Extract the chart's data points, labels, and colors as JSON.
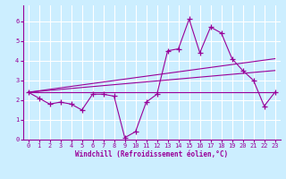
{
  "xlabel": "Windchill (Refroidissement éolien,°C)",
  "ylabel": "",
  "background_color": "#cceeff",
  "grid_color": "#ffffff",
  "line_color": "#990099",
  "xlim": [
    -0.5,
    23.5
  ],
  "ylim": [
    0,
    6.8
  ],
  "xticks": [
    0,
    1,
    2,
    3,
    4,
    5,
    6,
    7,
    8,
    9,
    10,
    11,
    12,
    13,
    14,
    15,
    16,
    17,
    18,
    19,
    20,
    21,
    22,
    23
  ],
  "yticks": [
    0,
    1,
    2,
    3,
    4,
    5,
    6
  ],
  "scatter_x": [
    0,
    1,
    2,
    3,
    4,
    5,
    6,
    7,
    8,
    9,
    10,
    11,
    12,
    13,
    14,
    15,
    16,
    17,
    18,
    19,
    20,
    21,
    22,
    23
  ],
  "scatter_y": [
    2.4,
    2.1,
    1.8,
    1.9,
    1.8,
    1.5,
    2.3,
    2.3,
    2.2,
    0.1,
    0.4,
    1.9,
    2.3,
    4.5,
    4.6,
    6.1,
    4.4,
    5.7,
    5.4,
    4.1,
    3.5,
    3.0,
    1.7,
    2.4
  ],
  "line1_x": [
    0,
    23
  ],
  "line1_y": [
    2.4,
    2.4
  ],
  "line2_x": [
    0,
    23
  ],
  "line2_y": [
    2.4,
    3.5
  ],
  "line3_x": [
    0,
    23
  ],
  "line3_y": [
    2.4,
    4.1
  ],
  "font_color": "#990099",
  "tick_fontsize": 5.0,
  "xlabel_fontsize": 5.5
}
